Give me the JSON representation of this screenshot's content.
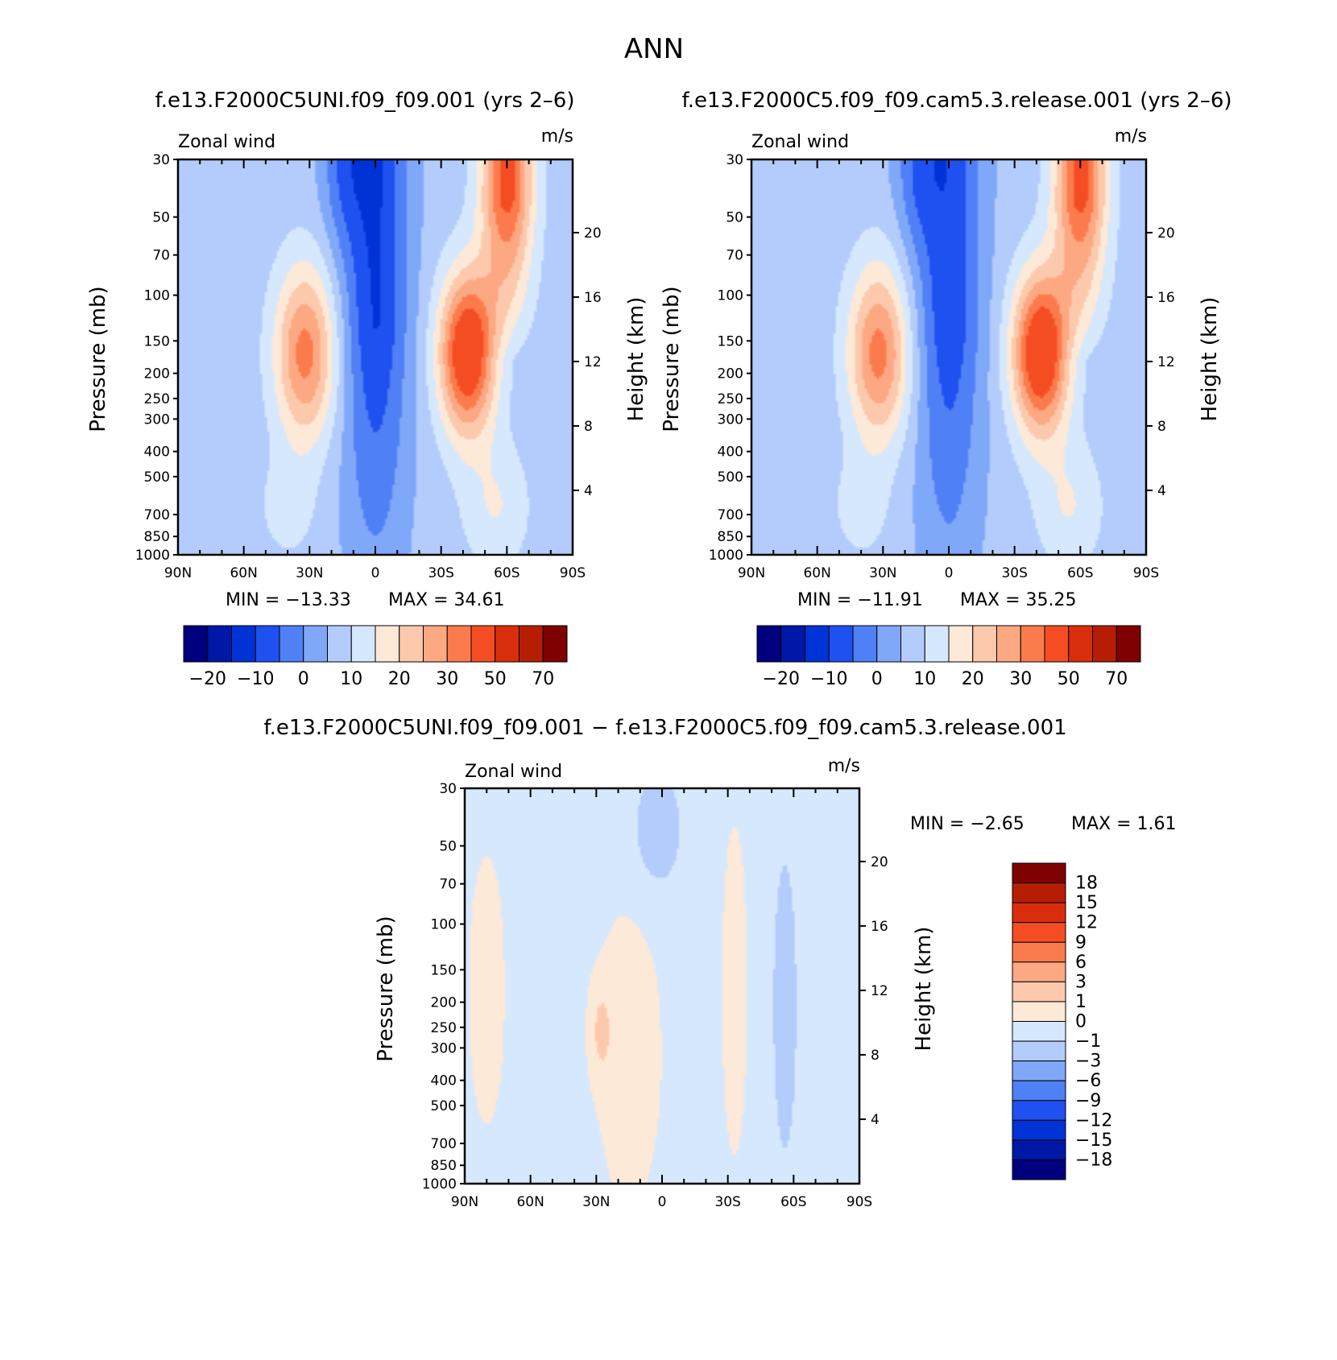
{
  "page_title": "ANN",
  "chart_data": [
    {
      "type": "heatmap",
      "id": "panel-test",
      "title": "f.e13.F2000C5UNI.f09_f09.001 (yrs 2–6)",
      "variable_label": "Zonal wind",
      "units": "m/s",
      "xlabel": "",
      "ylabel": "Pressure (mb)",
      "ylabel_right": "Height (km)",
      "x_ticks": [
        "90N",
        "60N",
        "30N",
        "0",
        "30S",
        "60S",
        "90S"
      ],
      "y_ticks": [
        "30",
        "50",
        "70",
        "100",
        "150",
        "200",
        "250",
        "300",
        "400",
        "500",
        "700",
        "850",
        "1000"
      ],
      "y_ticks_right": [
        "20",
        "16",
        "12",
        "8",
        "4"
      ],
      "min_label": "MIN = −13.33",
      "max_label": "MAX =  34.61",
      "min": -13.33,
      "max": 34.61,
      "jets": {
        "nh_peak": 25,
        "sh_peak": 34.6,
        "eq_min": -13.3
      },
      "colorbar": {
        "orientation": "horizontal",
        "tick_labels": [
          "−20",
          "−10",
          "0",
          "10",
          "20",
          "30",
          "50",
          "70"
        ],
        "colors": [
          "#00007f",
          "#0018a8",
          "#0033d6",
          "#1f50f0",
          "#4f80f5",
          "#80a8f9",
          "#b3ccfb",
          "#d6e8fd",
          "#fde9d8",
          "#fdc9ac",
          "#fca883",
          "#fc7b4c",
          "#f54d23",
          "#d92e0b",
          "#b61e04",
          "#7f0000"
        ]
      }
    },
    {
      "type": "heatmap",
      "id": "panel-control",
      "title": "f.e13.F2000C5.f09_f09.cam5.3.release.001 (yrs 2–6)",
      "variable_label": "Zonal wind",
      "units": "m/s",
      "xlabel": "",
      "ylabel": "Pressure (mb)",
      "ylabel_right": "Height (km)",
      "x_ticks": [
        "90N",
        "60N",
        "30N",
        "0",
        "30S",
        "60S",
        "90S"
      ],
      "y_ticks": [
        "30",
        "50",
        "70",
        "100",
        "150",
        "200",
        "250",
        "300",
        "400",
        "500",
        "700",
        "850",
        "1000"
      ],
      "y_ticks_right": [
        "20",
        "16",
        "12",
        "8",
        "4"
      ],
      "min_label": "MIN = −11.91",
      "max_label": "MAX =  35.25",
      "min": -11.91,
      "max": 35.25,
      "jets": {
        "nh_peak": 25,
        "sh_peak": 35.2,
        "eq_min": -11.9
      },
      "colorbar": {
        "orientation": "horizontal",
        "tick_labels": [
          "−20",
          "−10",
          "0",
          "10",
          "20",
          "30",
          "50",
          "70"
        ],
        "colors": [
          "#00007f",
          "#0018a8",
          "#0033d6",
          "#1f50f0",
          "#4f80f5",
          "#80a8f9",
          "#b3ccfb",
          "#d6e8fd",
          "#fde9d8",
          "#fdc9ac",
          "#fca883",
          "#fc7b4c",
          "#f54d23",
          "#d92e0b",
          "#b61e04",
          "#7f0000"
        ]
      }
    },
    {
      "type": "heatmap",
      "id": "panel-diff",
      "title": "f.e13.F2000C5UNI.f09_f09.001 − f.e13.F2000C5.f09_f09.cam5.3.release.001",
      "variable_label": "Zonal wind",
      "units": "m/s",
      "xlabel": "",
      "ylabel": "Pressure (mb)",
      "ylabel_right": "Height (km)",
      "x_ticks": [
        "90N",
        "60N",
        "30N",
        "0",
        "30S",
        "60S",
        "90S"
      ],
      "y_ticks": [
        "30",
        "50",
        "70",
        "100",
        "150",
        "200",
        "250",
        "300",
        "400",
        "500",
        "700",
        "850",
        "1000"
      ],
      "y_ticks_right": [
        "20",
        "16",
        "12",
        "8",
        "4"
      ],
      "min_label": "MIN =   −2.65",
      "max_label": "MAX =   1.61",
      "min": -2.65,
      "max": 1.61,
      "colorbar": {
        "orientation": "vertical",
        "tick_labels": [
          "18",
          "15",
          "12",
          "9",
          "6",
          "3",
          "1",
          "0",
          "−1",
          "−3",
          "−6",
          "−9",
          "−12",
          "−15",
          "−18"
        ],
        "colors": [
          "#7f0000",
          "#b61e04",
          "#d92e0b",
          "#f54d23",
          "#fc7b4c",
          "#fca883",
          "#fdc9ac",
          "#fde9d8",
          "#d6e8fd",
          "#b3ccfb",
          "#80a8f9",
          "#4f80f5",
          "#1f50f0",
          "#0033d6",
          "#0018a8",
          "#00007f"
        ]
      }
    }
  ]
}
